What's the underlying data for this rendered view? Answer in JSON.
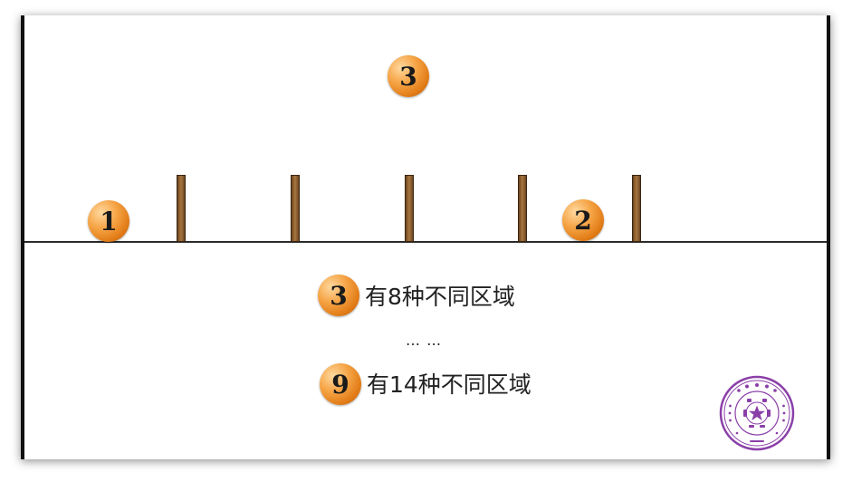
{
  "figure": {
    "balls": [
      {
        "id": "ball-top",
        "label": "3"
      },
      {
        "id": "ball-left",
        "label": "1"
      },
      {
        "id": "ball-right",
        "label": "2"
      }
    ],
    "post_count": 5
  },
  "statements": [
    {
      "ball_label": "3",
      "text": "有8种不同区域"
    },
    {
      "ball_label": "9",
      "text": "有14种不同区域"
    }
  ],
  "ellipsis": "…   …",
  "colors": {
    "ball": "#f29a3a",
    "post": "#8b5a2b",
    "seal": "#8a3fa8"
  }
}
